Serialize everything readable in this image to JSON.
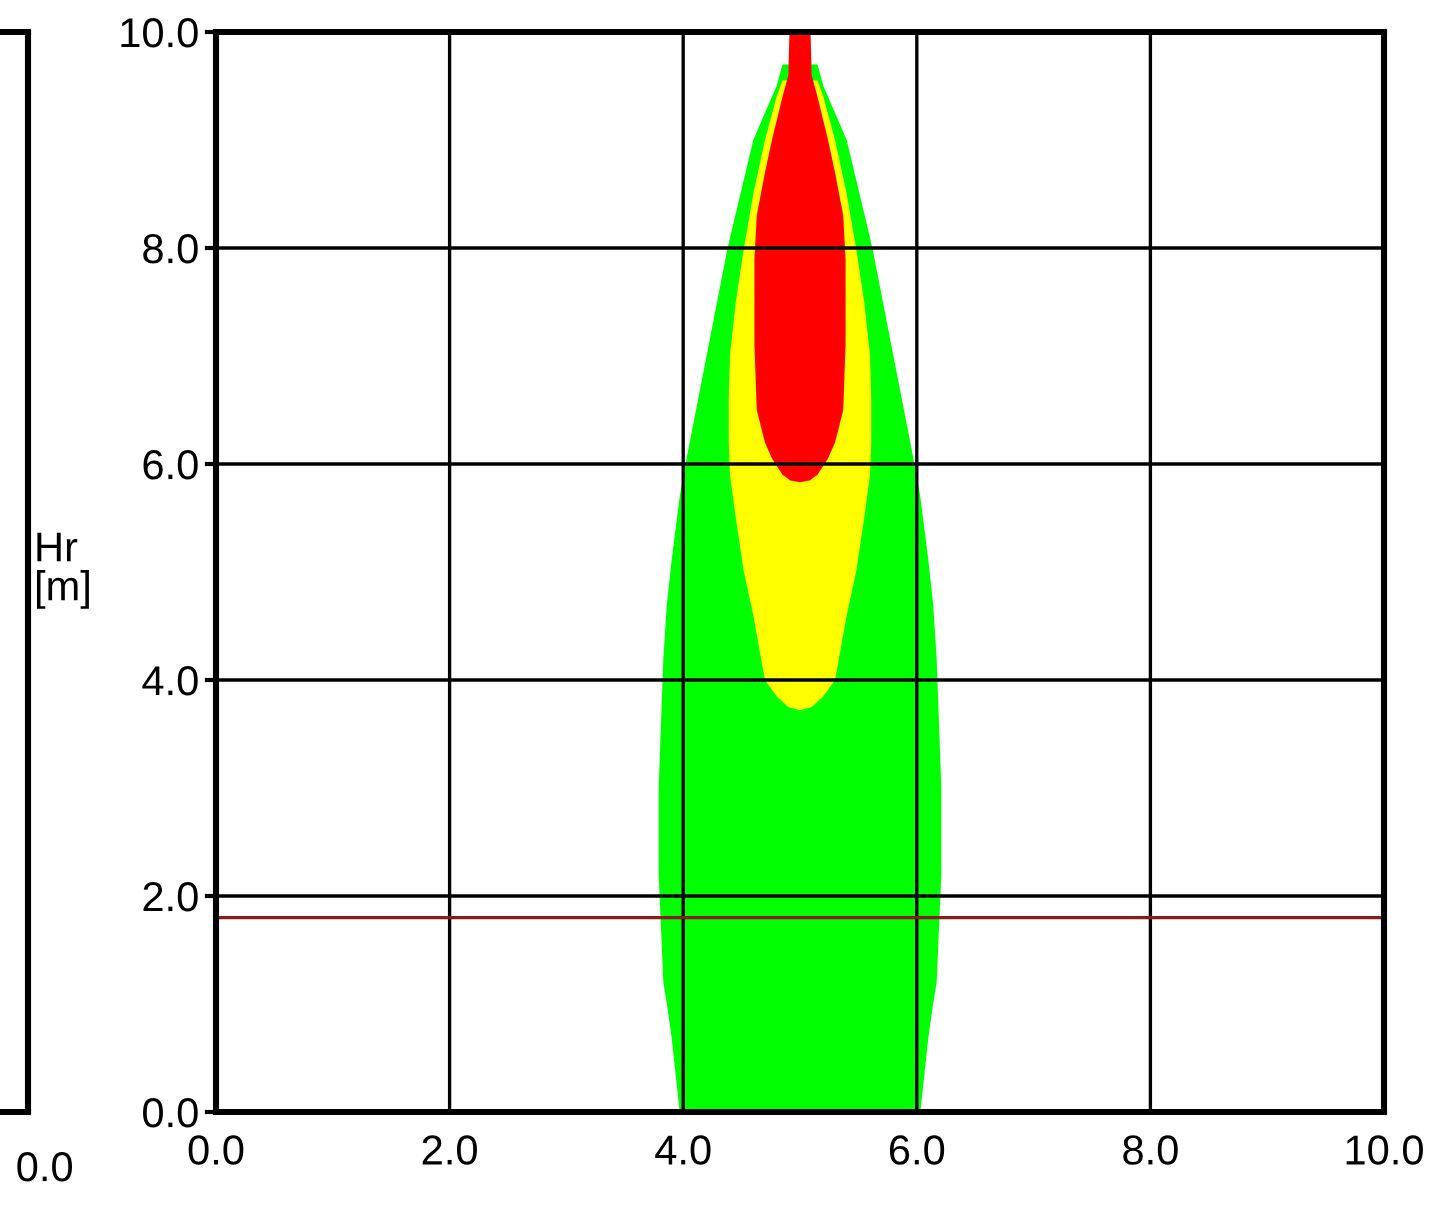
{
  "chart_data": [
    {
      "type": "other",
      "annotations": [
        "0.0"
      ]
    },
    {
      "type": "area",
      "ylabel": "Hr\n[m]",
      "xlim": [
        0,
        10
      ],
      "ylim": [
        0,
        10
      ],
      "xticks": [
        {
          "value": 0,
          "label": "0.0"
        },
        {
          "value": 2,
          "label": "2.0"
        },
        {
          "value": 4,
          "label": "4.0"
        },
        {
          "value": 6,
          "label": "6.0"
        },
        {
          "value": 8,
          "label": "8.0"
        },
        {
          "value": 10,
          "label": "10.0"
        }
      ],
      "yticks": [
        {
          "value": 0,
          "label": "0.0"
        },
        {
          "value": 2,
          "label": "2.0"
        },
        {
          "value": 4,
          "label": "4.0"
        },
        {
          "value": 6,
          "label": "6.0"
        },
        {
          "value": 8,
          "label": "8.0"
        },
        {
          "value": 10,
          "label": "10.0"
        }
      ],
      "grid": true,
      "series": [
        {
          "color": "#00ff00",
          "x": [
            3.79,
            3.83,
            3.86,
            3.9,
            3.97,
            4.02,
            4.2,
            4.38,
            4.6,
            4.8,
            4.85,
            5.15,
            5.2,
            5.4,
            5.62,
            5.8,
            5.98,
            6.03,
            6.1,
            6.14,
            6.17,
            6.21,
            6.21,
            6.17,
            6.14,
            6.1,
            6.03,
            3.97,
            3.9,
            3.86,
            3.83,
            3.79
          ],
          "values": [
            3.0,
            4.2,
            4.7,
            5.1,
            5.7,
            6.0,
            7.0,
            8.0,
            9.0,
            9.5,
            9.7,
            9.7,
            9.5,
            9.0,
            8.0,
            7.0,
            6.0,
            5.7,
            5.1,
            4.7,
            4.2,
            3.0,
            2.2,
            1.2,
            1.0,
            0.7,
            0,
            0,
            0.7,
            1.0,
            1.2,
            2.2
          ]
        },
        {
          "color": "#ffff00",
          "x": [
            4.39,
            4.4,
            4.45,
            4.52,
            4.6,
            4.7,
            4.8,
            4.85,
            5.15,
            5.2,
            5.3,
            5.4,
            5.48,
            5.55,
            5.6,
            5.61,
            5.61,
            5.6,
            5.55,
            5.48,
            5.4,
            5.3,
            5.2,
            5.1,
            5.0,
            4.9,
            4.8,
            4.7,
            4.6,
            4.52,
            4.45,
            4.4,
            4.39
          ],
          "values": [
            6.6,
            7.0,
            7.5,
            8.0,
            8.5,
            9.0,
            9.4,
            9.55,
            9.55,
            9.4,
            9.0,
            8.5,
            8.0,
            7.5,
            7.0,
            6.6,
            6.2,
            5.9,
            5.5,
            5.0,
            4.6,
            4.0,
            3.85,
            3.75,
            3.72,
            3.75,
            3.85,
            4.0,
            4.6,
            5.0,
            5.5,
            5.9,
            6.2
          ]
        },
        {
          "color": "#ff0000",
          "x": [
            4.61,
            4.63,
            4.7,
            4.76,
            4.85,
            4.9,
            4.91,
            5.09,
            5.1,
            5.15,
            5.24,
            5.3,
            5.37,
            5.39,
            5.39,
            5.37,
            5.3,
            5.24,
            5.15,
            5.1,
            5.09,
            5.0,
            4.91,
            4.9,
            4.85,
            4.76,
            4.7,
            4.63,
            4.61
          ],
          "values": [
            7.9,
            8.3,
            8.7,
            9.0,
            9.4,
            9.6,
            10,
            10,
            9.6,
            9.4,
            9.0,
            8.7,
            8.3,
            7.9,
            7.1,
            6.5,
            6.2,
            6.05,
            5.9,
            5.86,
            5.85,
            5.83,
            5.85,
            5.86,
            5.9,
            6.05,
            6.2,
            6.5,
            7.1
          ]
        }
      ],
      "ref_lines": [
        {
          "axis": "y",
          "value": 1.8,
          "color": "#8b1a1a"
        }
      ]
    }
  ]
}
